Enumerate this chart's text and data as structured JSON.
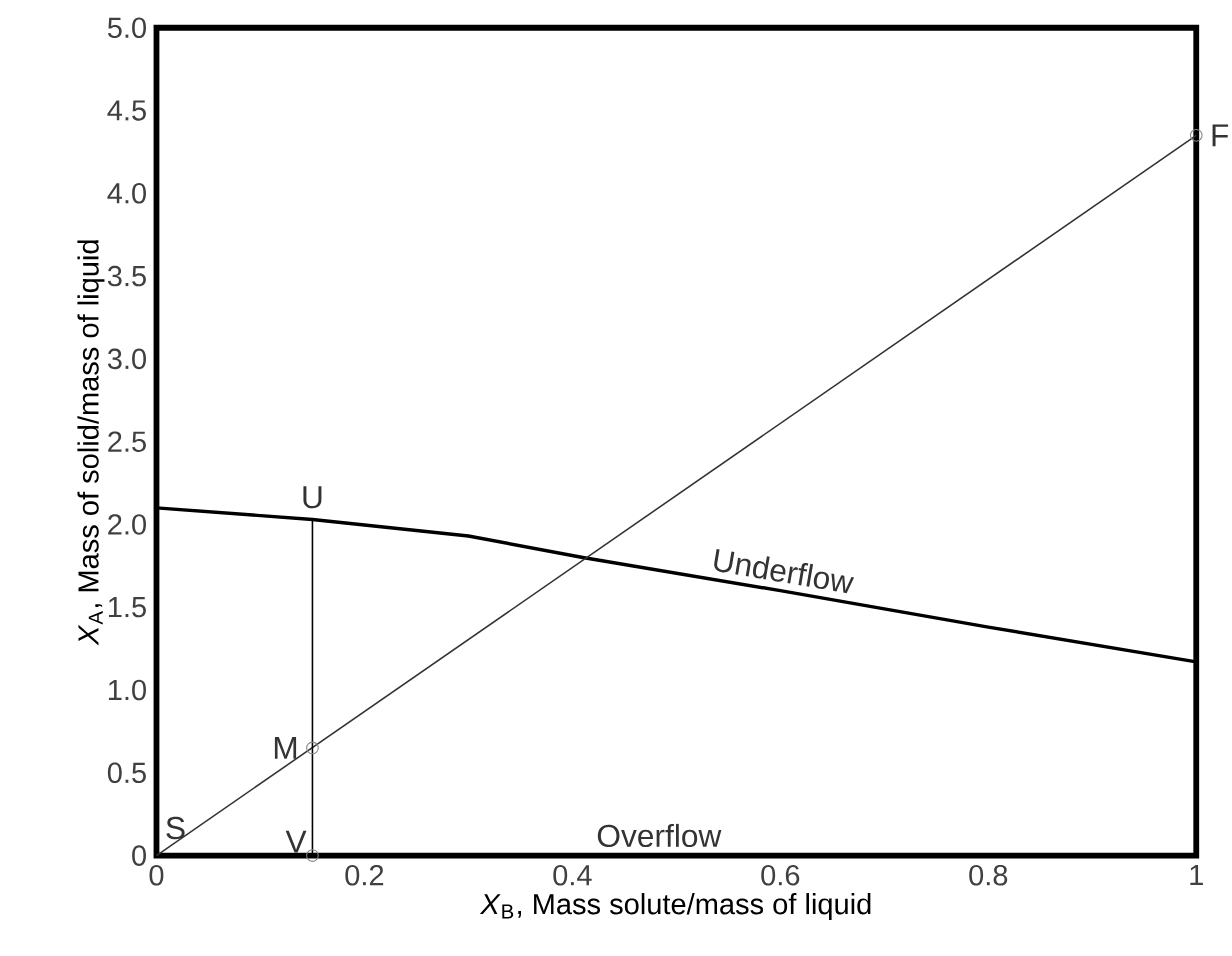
{
  "chart_data": {
    "type": "line",
    "xlabel": "*X*$_{B}$, Mass solute/mass of liquid",
    "ylabel": "*X*$_{A}$, Mass of solid/mass of liquid",
    "xlim": [
      0,
      1
    ],
    "ylim": [
      0,
      5
    ],
    "xticks": [
      0,
      0.2,
      0.4,
      0.6,
      0.8,
      1
    ],
    "yticks": [
      0,
      {
        "value": 0.5,
        "label": "0.5"
      },
      {
        "value": 1,
        "label": "1.0"
      },
      {
        "value": 1.5,
        "label": "1.5"
      },
      {
        "value": 2,
        "label": "2.0"
      },
      {
        "value": 2.5,
        "label": "2.5"
      },
      {
        "value": 3,
        "label": "3.0"
      },
      {
        "value": 3.5,
        "label": "3.5"
      },
      {
        "value": 4,
        "label": "4.0"
      },
      {
        "value": 4.5,
        "label": "4.5"
      },
      {
        "value": 5,
        "label": "5.0"
      }
    ],
    "grid": false,
    "line_style": "solid",
    "series": [
      {
        "color": "#000000",
        "marker": "none",
        "x": [
          0,
          0.15,
          0.3,
          0.41,
          0.6,
          0.8,
          1
        ],
        "values": [
          2.1,
          2.03,
          1.93,
          1.8,
          1.6,
          1.38,
          1.17
        ]
      },
      {
        "color": "#333333",
        "marker": "none",
        "x": [
          0,
          1
        ],
        "values": [
          0,
          4.35
        ]
      },
      {
        "color": "#000000",
        "marker": "none",
        "x": [
          0.15,
          0.15
        ],
        "values": [
          0,
          2.03
        ]
      },
      {
        "type": "scatter",
        "color": "#888888",
        "marker": "circle",
        "x": [
          0.15,
          0.15,
          1
        ],
        "values": [
          0.65,
          0,
          4.35
        ]
      }
    ],
    "annotations": [
      {
        "text": "S",
        "x": 0,
        "y": 0
      },
      {
        "text": "U",
        "x": 0.15,
        "y": 2.03
      },
      {
        "text": "M",
        "x": 0.15,
        "y": 0.65
      },
      {
        "text": "V",
        "x": 0.15,
        "y": 0
      },
      {
        "text": "F",
        "x": 1,
        "y": 4.35
      },
      {
        "text": "Underflow",
        "x": 0.6,
        "y": 1.6
      },
      "Overflow"
    ]
  }
}
